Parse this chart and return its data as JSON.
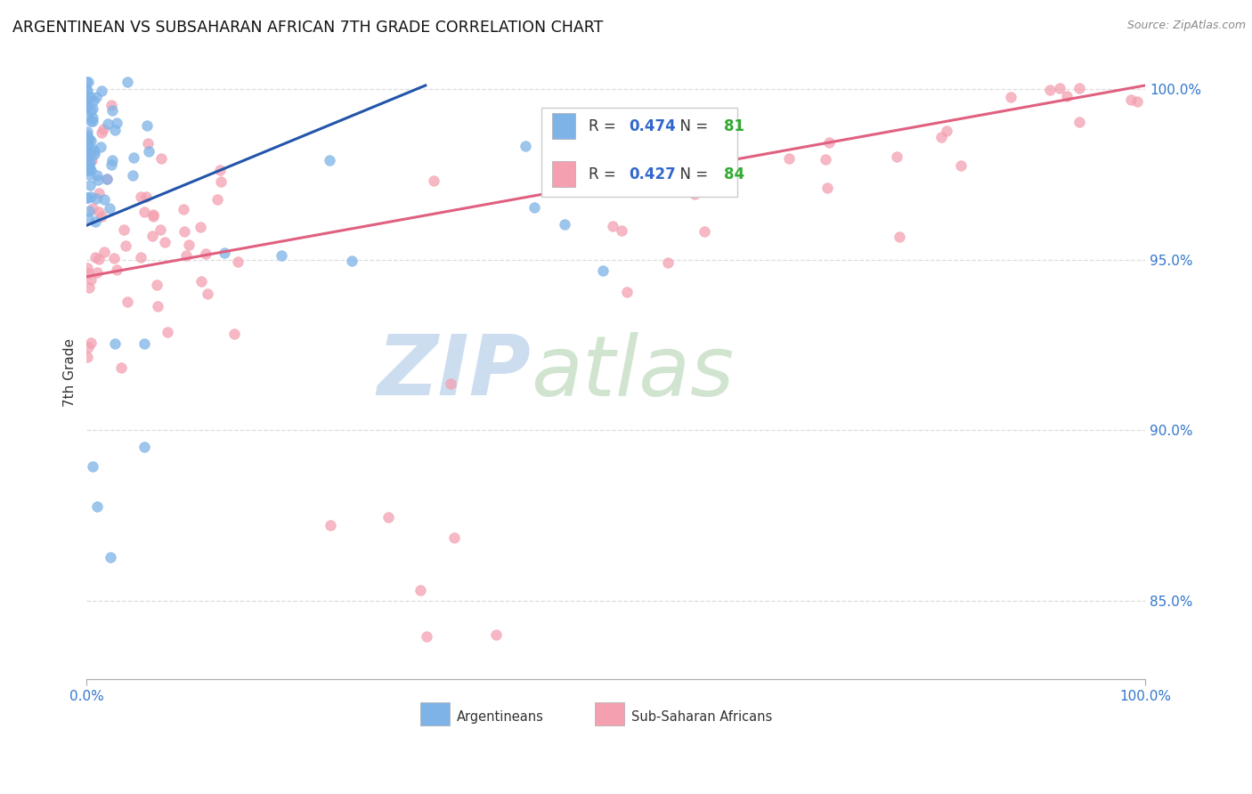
{
  "title": "ARGENTINEAN VS SUBSAHARAN AFRICAN 7TH GRADE CORRELATION CHART",
  "source": "Source: ZipAtlas.com",
  "ylabel": "7th Grade",
  "blue_R": 0.474,
  "blue_N": 81,
  "pink_R": 0.427,
  "pink_N": 84,
  "blue_color": "#7EB3E8",
  "pink_color": "#F4A0B0",
  "blue_edge_color": "#7EB3E8",
  "pink_edge_color": "#F4A0B0",
  "blue_line_color": "#2255AA",
  "pink_line_color": "#E06080",
  "legend_R_color": "#3366CC",
  "legend_N_color": "#33AA33",
  "marker_size": 70,
  "xmin": 0.0,
  "xmax": 1.0,
  "ymin": 0.827,
  "ymax": 1.007,
  "ytick_positions": [
    0.85,
    0.9,
    0.95,
    1.0
  ],
  "ytick_labels": [
    "85.0%",
    "90.0%",
    "95.0%",
    "100.0%"
  ],
  "background_color": "#FFFFFF",
  "grid_color": "#DDDDDD",
  "watermark_zip_color": "#C8D8F0",
  "watermark_atlas_color": "#D0E8D0"
}
